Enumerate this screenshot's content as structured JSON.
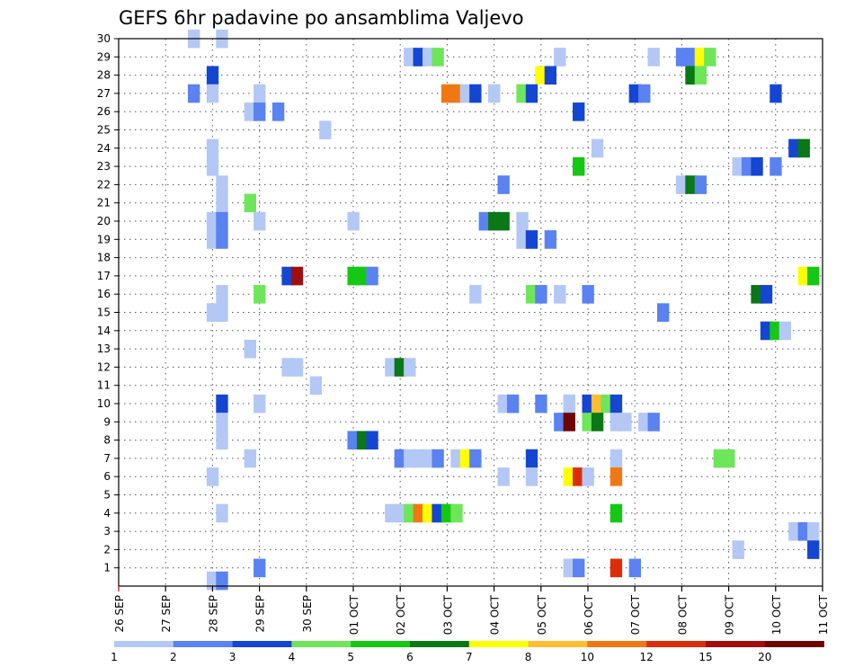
{
  "chart_data": {
    "type": "heatmap",
    "title": "GEFS 6hr padavine po ansamblima Valjevo",
    "xlabel": "",
    "ylabel": "",
    "y_ticks": [
      1,
      2,
      3,
      4,
      5,
      6,
      7,
      8,
      9,
      10,
      11,
      12,
      13,
      14,
      15,
      16,
      17,
      18,
      19,
      20,
      21,
      22,
      23,
      24,
      25,
      26,
      27,
      28,
      29,
      30
    ],
    "ylim": [
      0,
      30
    ],
    "x_ticks": [
      "26 SEP",
      "27 SEP",
      "28 SEP",
      "29 SEP",
      "30 SEP",
      "01 OCT",
      "02 OCT",
      "03 OCT",
      "04 OCT",
      "05 OCT",
      "06 OCT",
      "07 OCT",
      "08 OCT",
      "09 OCT",
      "10 OCT",
      "11 OCT"
    ],
    "x_unit": "day",
    "step": "6hr",
    "grid": true,
    "legend": {
      "placement": "bottom",
      "labels": [
        "1",
        "2",
        "3",
        "4",
        "5",
        "6",
        "7",
        "8",
        "10",
        "12",
        "15",
        "20"
      ],
      "colors": [
        "#b4c8f5",
        "#5a82f0",
        "#1446d2",
        "#6ee65a",
        "#14c814",
        "#0a7814",
        "#ffff00",
        "#ffbe32",
        "#f07814",
        "#dc2d0a",
        "#a00f0f",
        "#6e0505"
      ]
    },
    "cells": [
      [
        1.6,
        30,
        0
      ],
      [
        2.2,
        30,
        0
      ],
      [
        6.2,
        29,
        0
      ],
      [
        6.4,
        29,
        2
      ],
      [
        6.6,
        29,
        0
      ],
      [
        6.8,
        29,
        3
      ],
      [
        9.4,
        29,
        0
      ],
      [
        11.4,
        29,
        0
      ],
      [
        12.0,
        29,
        1
      ],
      [
        12.2,
        29,
        1
      ],
      [
        12.4,
        29,
        6
      ],
      [
        12.6,
        29,
        3
      ],
      [
        2.0,
        28,
        2
      ],
      [
        9.0,
        28,
        6
      ],
      [
        9.2,
        28,
        2
      ],
      [
        12.2,
        28,
        5
      ],
      [
        12.4,
        28,
        3
      ],
      [
        1.6,
        27,
        1
      ],
      [
        2.0,
        27,
        0
      ],
      [
        3.0,
        27,
        0
      ],
      [
        7.0,
        27,
        8
      ],
      [
        7.2,
        27,
        8
      ],
      [
        7.4,
        27,
        0
      ],
      [
        7.6,
        27,
        2
      ],
      [
        8.0,
        27,
        0
      ],
      [
        8.6,
        27,
        3
      ],
      [
        8.8,
        27,
        2
      ],
      [
        11.0,
        27,
        2
      ],
      [
        11.2,
        27,
        1
      ],
      [
        14.0,
        27,
        2
      ],
      [
        2.8,
        26,
        0
      ],
      [
        3.0,
        26,
        1
      ],
      [
        3.4,
        26,
        1
      ],
      [
        9.8,
        26,
        2
      ],
      [
        4.4,
        25,
        0
      ],
      [
        2.0,
        24,
        0
      ],
      [
        10.2,
        24,
        0
      ],
      [
        14.4,
        24,
        2
      ],
      [
        14.6,
        24,
        5
      ],
      [
        2.0,
        23,
        0
      ],
      [
        9.8,
        23,
        4
      ],
      [
        13.2,
        23,
        0
      ],
      [
        13.4,
        23,
        1
      ],
      [
        13.6,
        23,
        2
      ],
      [
        14.0,
        23,
        1
      ],
      [
        2.2,
        22,
        0
      ],
      [
        8.2,
        22,
        1
      ],
      [
        12.0,
        22,
        0
      ],
      [
        12.2,
        22,
        5
      ],
      [
        12.4,
        22,
        1
      ],
      [
        2.2,
        21,
        0
      ],
      [
        2.8,
        21,
        3
      ],
      [
        2.0,
        20,
        0
      ],
      [
        2.2,
        20,
        1
      ],
      [
        3.0,
        20,
        0
      ],
      [
        5.0,
        20,
        0
      ],
      [
        7.8,
        20,
        1
      ],
      [
        8.0,
        20,
        5
      ],
      [
        8.2,
        20,
        5
      ],
      [
        8.6,
        20,
        0
      ],
      [
        2.0,
        19,
        0
      ],
      [
        2.2,
        19,
        1
      ],
      [
        8.6,
        19,
        0
      ],
      [
        8.8,
        19,
        2
      ],
      [
        9.2,
        19,
        1
      ],
      [
        3.6,
        17,
        2
      ],
      [
        3.8,
        17,
        10
      ],
      [
        5.0,
        17,
        4
      ],
      [
        5.2,
        17,
        4
      ],
      [
        5.4,
        17,
        1
      ],
      [
        14.6,
        17,
        6
      ],
      [
        14.8,
        17,
        4
      ],
      [
        2.2,
        16,
        0
      ],
      [
        3.0,
        16,
        3
      ],
      [
        7.6,
        16,
        0
      ],
      [
        8.8,
        16,
        3
      ],
      [
        9.0,
        16,
        1
      ],
      [
        9.4,
        16,
        0
      ],
      [
        10.0,
        16,
        1
      ],
      [
        13.6,
        16,
        5
      ],
      [
        13.8,
        16,
        2
      ],
      [
        2.0,
        15,
        0
      ],
      [
        2.2,
        15,
        0
      ],
      [
        11.6,
        15,
        1
      ],
      [
        13.8,
        14,
        2
      ],
      [
        14.0,
        14,
        4
      ],
      [
        14.2,
        14,
        0
      ],
      [
        2.8,
        13,
        0
      ],
      [
        3.6,
        12,
        0
      ],
      [
        3.8,
        12,
        0
      ],
      [
        5.8,
        12,
        0
      ],
      [
        6.0,
        12,
        5
      ],
      [
        6.2,
        12,
        0
      ],
      [
        4.2,
        11,
        0
      ],
      [
        2.2,
        10,
        2
      ],
      [
        3.0,
        10,
        0
      ],
      [
        8.2,
        10,
        0
      ],
      [
        8.4,
        10,
        1
      ],
      [
        9.0,
        10,
        1
      ],
      [
        9.6,
        10,
        0
      ],
      [
        10.0,
        10,
        2
      ],
      [
        10.2,
        10,
        7
      ],
      [
        10.4,
        10,
        3
      ],
      [
        10.6,
        10,
        2
      ],
      [
        2.2,
        9,
        0
      ],
      [
        9.4,
        9,
        1
      ],
      [
        9.6,
        9,
        11
      ],
      [
        10.0,
        9,
        3
      ],
      [
        10.2,
        9,
        5
      ],
      [
        10.6,
        9,
        0
      ],
      [
        10.8,
        9,
        0
      ],
      [
        11.2,
        9,
        0
      ],
      [
        11.4,
        9,
        1
      ],
      [
        2.2,
        8,
        0
      ],
      [
        5.0,
        8,
        1
      ],
      [
        5.2,
        8,
        5
      ],
      [
        5.4,
        8,
        2
      ],
      [
        2.8,
        7,
        0
      ],
      [
        6.0,
        7,
        1
      ],
      [
        6.2,
        7,
        0
      ],
      [
        6.4,
        7,
        0
      ],
      [
        6.6,
        7,
        0
      ],
      [
        6.8,
        7,
        1
      ],
      [
        7.2,
        7,
        0
      ],
      [
        7.4,
        7,
        6
      ],
      [
        7.6,
        7,
        1
      ],
      [
        8.8,
        7,
        2
      ],
      [
        10.6,
        7,
        0
      ],
      [
        12.8,
        7,
        3
      ],
      [
        13.0,
        7,
        3
      ],
      [
        2.0,
        6,
        0
      ],
      [
        8.2,
        6,
        0
      ],
      [
        8.8,
        6,
        0
      ],
      [
        9.6,
        6,
        6
      ],
      [
        9.8,
        6,
        9
      ],
      [
        10.0,
        6,
        0
      ],
      [
        10.6,
        6,
        8
      ],
      [
        2.2,
        4,
        0
      ],
      [
        5.8,
        4,
        0
      ],
      [
        6.0,
        4,
        0
      ],
      [
        6.2,
        4,
        3
      ],
      [
        6.4,
        4,
        8
      ],
      [
        6.6,
        4,
        6
      ],
      [
        6.8,
        4,
        2
      ],
      [
        7.0,
        4,
        4
      ],
      [
        7.2,
        4,
        3
      ],
      [
        10.6,
        4,
        4
      ],
      [
        14.4,
        3,
        0
      ],
      [
        14.6,
        3,
        1
      ],
      [
        14.8,
        3,
        0
      ],
      [
        13.2,
        2,
        0
      ],
      [
        14.8,
        2,
        2
      ],
      [
        9.6,
        1,
        0
      ],
      [
        9.8,
        1,
        1
      ],
      [
        10.6,
        1,
        9
      ],
      [
        11.0,
        1,
        1
      ],
      [
        3.0,
        1,
        1
      ],
      [
        2.0,
        0.3,
        0
      ],
      [
        2.2,
        0.3,
        1
      ]
    ]
  }
}
